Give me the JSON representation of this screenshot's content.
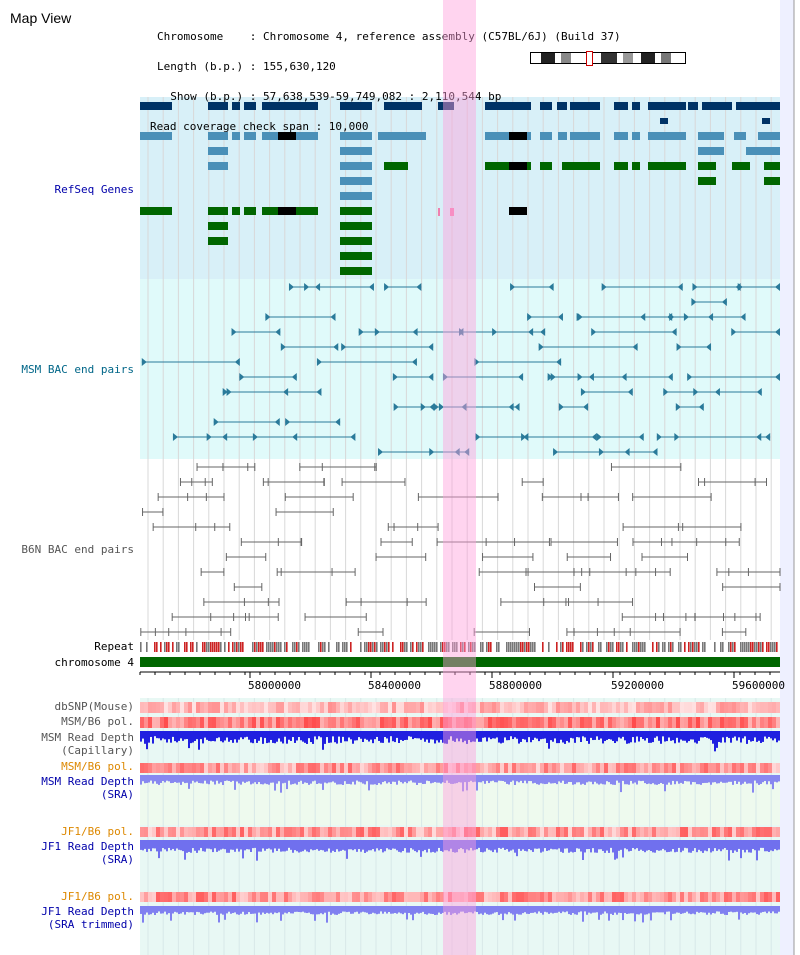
{
  "header": {
    "title": "Map View",
    "info_lines": [
      "Chromosome    : Chromosome 4, reference assembly (C57BL/6J) (Build 37)",
      "Length (b.p.) : 155,630,120",
      "  Show (b.p.) : 57,638,539-59,749,082 : 2,110,544 bp",
      "Read coverage check span : 10,000"
    ]
  },
  "tracks": {
    "refseq": "RefSeq Genes",
    "msm_bac": "MSM BAC end pairs",
    "b6n_bac": "B6N BAC end pairs",
    "repeat": "Repeat",
    "chromosome": "chromosome 4",
    "dbsnp": "dbSNP(Mouse)",
    "msm_b6_pol_1": "MSM/B6 pol.",
    "msm_depth_cap_1": "MSM Read Depth",
    "msm_depth_cap_2": "(Capillary)",
    "msm_b6_pol_2": "MSM/B6 pol.",
    "msm_depth_sra_1": "MSM Read Depth",
    "msm_depth_sra_2": "(SRA)",
    "jf1_pol_1": "JF1/B6 pol.",
    "jf1_depth_1": "JF1 Read Depth",
    "jf1_depth_1b": "(SRA)",
    "jf1_pol_2": "JF1/B6 pol.",
    "jf1_depth_2": "JF1 Read Depth",
    "jf1_depth_2b": "(SRA trimmed)"
  },
  "axis": {
    "ticks": [
      "58000000",
      "58400000",
      "58800000",
      "59200000",
      "59600000"
    ]
  },
  "colors": {
    "refseq_bg": "#d8f0f8",
    "msm_bg": "#e0fafa",
    "gene_dark": "#003366",
    "gene_light": "#4a90b8",
    "gene_green": "#006600",
    "msm_line": "#2a7a9a",
    "b6n_line": "#666666",
    "chromosome": "#006600",
    "highlight": "#ffb0e0"
  }
}
